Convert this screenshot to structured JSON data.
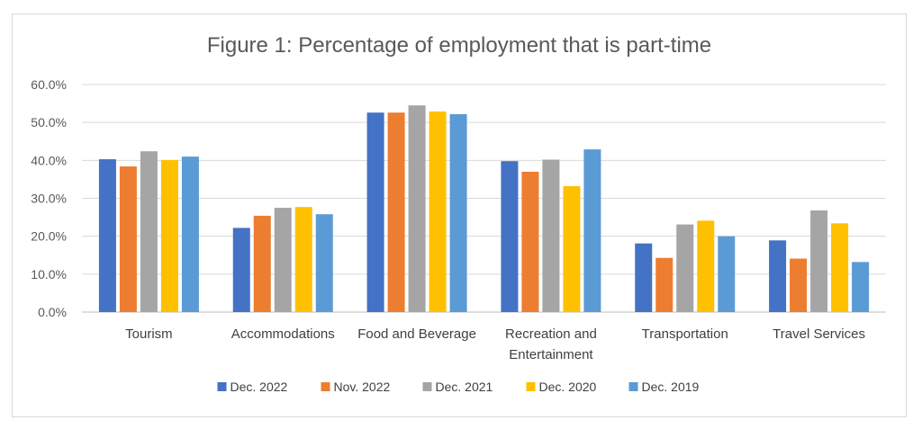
{
  "chart_data": {
    "type": "bar",
    "title": "Figure 1: Percentage of employment that is part-time",
    "categories": [
      "Tourism",
      "Accommodations",
      "Food and Beverage",
      "Recreation and Entertainment",
      "Transportation",
      "Travel Services"
    ],
    "category_lines": [
      [
        "Tourism"
      ],
      [
        "Accommodations"
      ],
      [
        "Food and Beverage"
      ],
      [
        "Recreation and",
        "Entertainment"
      ],
      [
        "Transportation"
      ],
      [
        "Travel Services"
      ]
    ],
    "series": [
      {
        "name": "Dec. 2022",
        "color": "#4472c4",
        "values": [
          40.3,
          22.2,
          52.6,
          39.8,
          18.1,
          18.9
        ]
      },
      {
        "name": "Nov. 2022",
        "color": "#ed7d31",
        "values": [
          38.4,
          25.4,
          52.6,
          37.0,
          14.3,
          14.1
        ]
      },
      {
        "name": "Dec. 2021",
        "color": "#a5a5a5",
        "values": [
          42.4,
          27.5,
          54.5,
          40.2,
          23.1,
          26.8
        ]
      },
      {
        "name": "Dec. 2020",
        "color": "#ffc000",
        "values": [
          40.1,
          27.7,
          52.9,
          33.2,
          24.1,
          23.4
        ]
      },
      {
        "name": "Dec. 2019",
        "color": "#5b9bd5",
        "values": [
          41.0,
          25.8,
          52.2,
          42.9,
          20.0,
          13.2
        ]
      }
    ],
    "yticks": [
      "0.0%",
      "10.0%",
      "20.0%",
      "30.0%",
      "40.0%",
      "50.0%",
      "60.0%"
    ],
    "ylim": [
      0,
      60
    ],
    "grid": true,
    "legend": "bottom"
  }
}
